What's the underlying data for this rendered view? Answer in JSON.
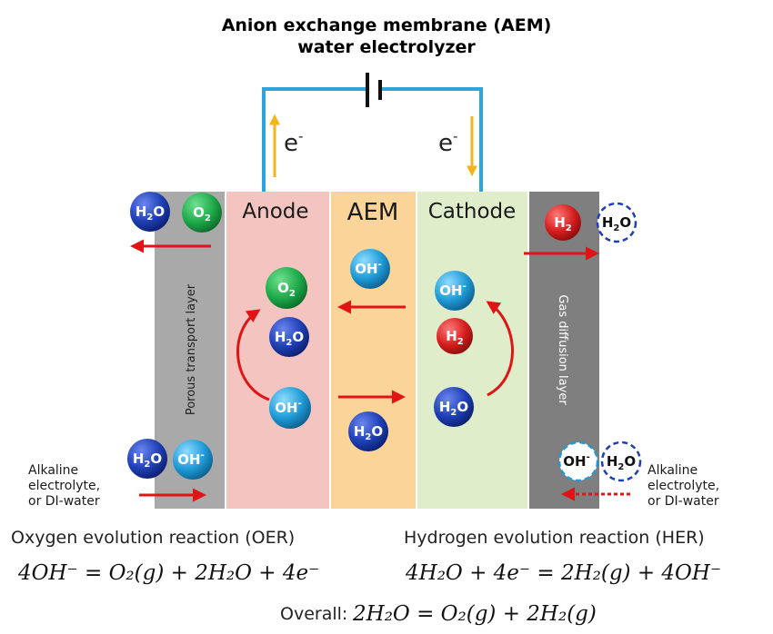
{
  "title": {
    "line1": "Anion exchange membrane (AEM)",
    "line2": "water electrolyzer"
  },
  "electrons": {
    "left": "e",
    "right": "e",
    "sup": "-"
  },
  "regions": {
    "anode": "Anode",
    "aem": "AEM",
    "cathode": "Cathode",
    "porous": "Porous transport layer",
    "gdl": "Gas diffusion layer"
  },
  "feed": {
    "left": [
      "Alkaline",
      "electrolyte,",
      "or DI-water"
    ],
    "right": [
      "Alkaline",
      "electrolyte,",
      "or DI-water"
    ]
  },
  "molecules": {
    "h2o": {
      "base": "H",
      "sub": "2",
      "tail": "O"
    },
    "o2": {
      "base": "O",
      "sub": "2"
    },
    "h2": {
      "base": "H",
      "sub": "2"
    },
    "oh": {
      "base": "OH",
      "sup": "-"
    }
  },
  "reactions": {
    "oer_label": "Oxygen evolution reaction (OER)",
    "her_label": "Hydrogen evolution reaction (HER)",
    "oer_eq": "4OH⁻ = O₂(g) + 2H₂O + 4e⁻",
    "her_eq": "4H₂O + 4e⁻ = 2H₂(g) + 4OH⁻",
    "overall_label": "Overall:",
    "overall_eq": "2H₂O = O₂(g) + 2H₂(g)"
  },
  "colors": {
    "porous": "#a9a9a9",
    "anode": "#f4c5c0",
    "aem": "#fbd49a",
    "cathode": "#dfedca",
    "gdl": "#7f7f7f",
    "wire": "#2fa3dc",
    "electron_arrow": "#f5b516",
    "ion_arrow": "#e01414",
    "h2o": "#1f3fb5",
    "o2": "#1faa4a",
    "h2": "#d61e1e",
    "oh": "#1f9ad6",
    "dashed": "#1f3fb5"
  }
}
